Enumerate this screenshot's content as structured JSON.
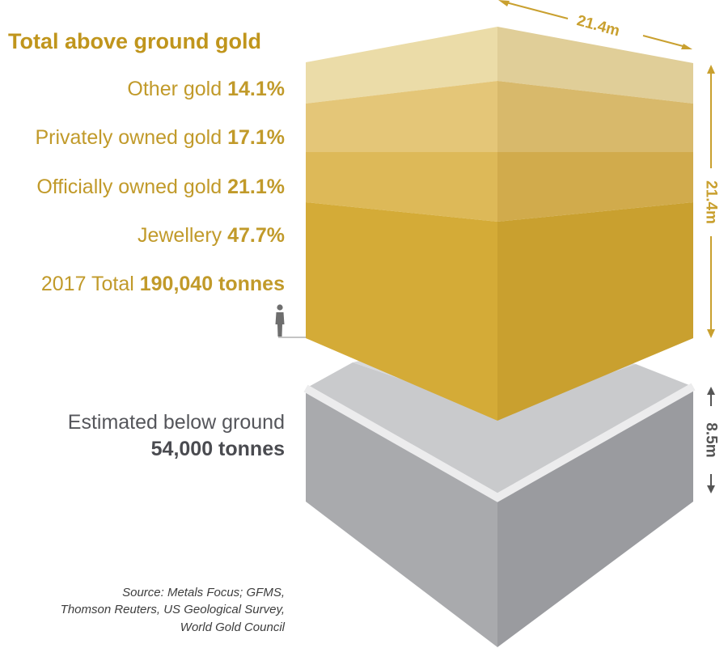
{
  "title": "Total above ground gold",
  "layers": [
    {
      "name": "Other gold",
      "value": "14.1%",
      "color_front": "#ebdca8",
      "color_side": "#e0ce98"
    },
    {
      "name": "Privately owned gold",
      "value": "17.1%",
      "color_front": "#e4c678",
      "color_side": "#d8b96b"
    },
    {
      "name": "Officially owned gold",
      "value": "21.1%",
      "color_front": "#ddb958",
      "color_side": "#d1ab4c"
    },
    {
      "name": "Jewellery",
      "value": "47.7%",
      "color_front": "#d4ab37",
      "color_side": "#c9a02f"
    }
  ],
  "total": {
    "prefix": "2017 Total",
    "value": "190,040 tonnes"
  },
  "below_ground": {
    "line1": "Estimated below ground",
    "value": "54,000 tonnes",
    "color": "#a9aaad"
  },
  "dimensions": {
    "width": "21.4m",
    "height": "21.4m",
    "depth": "8.5m"
  },
  "source_lines": [
    "Source: Metals Focus; GFMS,",
    "Thomson Reuters, US Geological Survey,",
    "World Gold Council"
  ]
}
